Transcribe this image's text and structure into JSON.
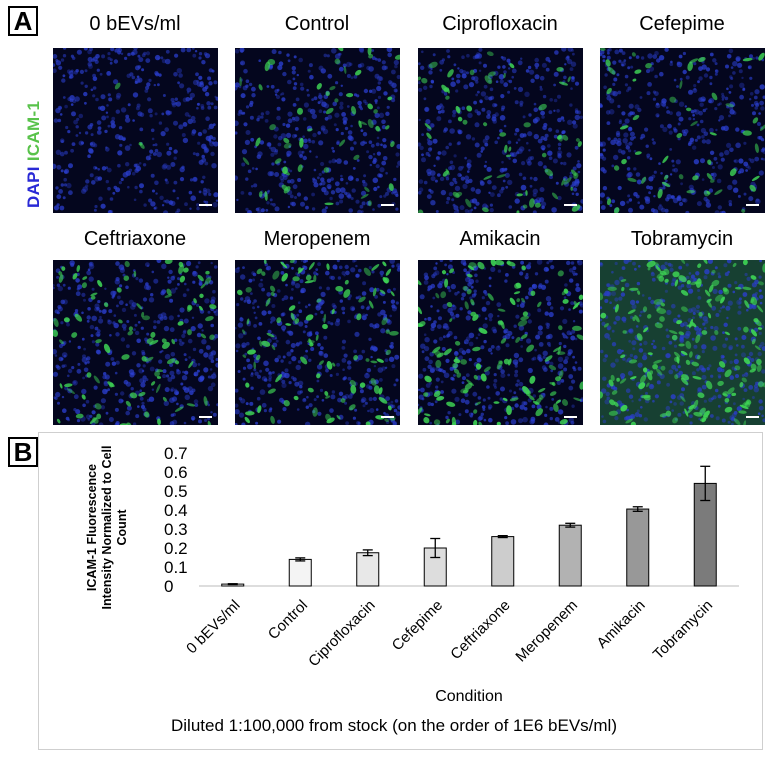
{
  "panel_a": {
    "letter": "A",
    "stain_dapi": "DAPI",
    "stain_icam": "ICAM-1",
    "images": [
      {
        "label": "0 bEVs/ml",
        "density": 0.02,
        "bright": 0.5
      },
      {
        "label": "Control",
        "density": 0.3,
        "bright": 0.8
      },
      {
        "label": "Ciprofloxacin",
        "density": 0.35,
        "bright": 0.85
      },
      {
        "label": "Cefepime",
        "density": 0.3,
        "bright": 0.8
      },
      {
        "label": "Ceftriaxone",
        "density": 0.55,
        "bright": 0.9
      },
      {
        "label": "Meropenem",
        "density": 0.6,
        "bright": 0.9
      },
      {
        "label": "Amikacin",
        "density": 0.75,
        "bright": 0.95
      },
      {
        "label": "Tobramycin",
        "density": 1.0,
        "bright": 1.0
      }
    ],
    "colors": {
      "nucleus": "#2b3fd0",
      "icam": "#3ed455",
      "background": "#04061e"
    }
  },
  "panel_b": {
    "letter": "B",
    "caption": "Diluted 1:100,000 from stock (on the order of 1E6 bEVs/ml)"
  },
  "chart_data": {
    "type": "bar",
    "categories": [
      "0 bEVs/ml",
      "Control",
      "Ciprofloxacin",
      "Cefepime",
      "Ceftriaxone",
      "Meropenem",
      "Amikacin",
      "Tobramycin"
    ],
    "values": [
      0.01,
      0.14,
      0.175,
      0.2,
      0.26,
      0.32,
      0.405,
      0.54
    ],
    "errors": [
      0.002,
      0.008,
      0.015,
      0.05,
      0.005,
      0.01,
      0.012,
      0.09
    ],
    "bar_colors": [
      "#ffffff",
      "#f4f4f4",
      "#e8e8e8",
      "#dddddd",
      "#cdcdcd",
      "#b2b2b2",
      "#989898",
      "#7b7b7b"
    ],
    "xlabel": "Condition",
    "ylabel_lines": [
      "ICAM-1 Fluorescence",
      "Intensity Normalized to Cell",
      "Count"
    ],
    "ylim": [
      0,
      0.7
    ],
    "yticks": [
      "0",
      "0.1",
      "0.2",
      "0.3",
      "0.4",
      "0.5",
      "0.6",
      "0.7"
    ],
    "grid": false,
    "legend": "none"
  }
}
